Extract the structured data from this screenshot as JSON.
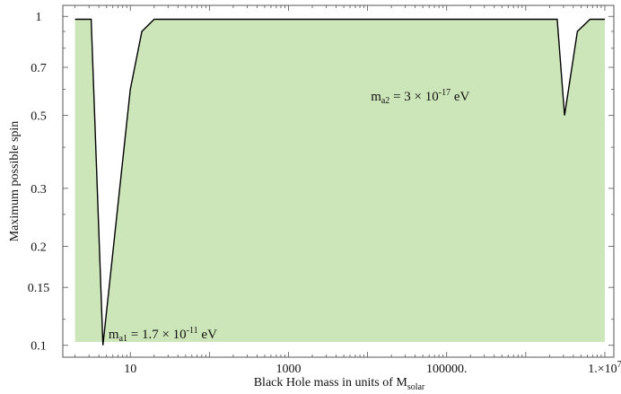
{
  "chart_data": {
    "type": "area",
    "title": "",
    "xlabel": "Black Hole mass in units of M",
    "xlabel_sub": "solar",
    "ylabel": "Maximum  possible  spin",
    "x_scale": "log",
    "y_scale": "log",
    "xlim": [
      1.4,
      13000000
    ],
    "ylim": [
      0.092,
      1.08
    ],
    "x_ticks": [
      {
        "value": 10,
        "label": "10"
      },
      {
        "value": 1000,
        "label": "1000"
      },
      {
        "value": 100000,
        "label": "100000."
      },
      {
        "value": 10000000,
        "label": "1.×10",
        "sup": "7"
      }
    ],
    "y_ticks": [
      {
        "value": 1,
        "label": "1"
      },
      {
        "value": 0.7,
        "label": "0.7"
      },
      {
        "value": 0.5,
        "label": "0.5"
      },
      {
        "value": 0.3,
        "label": "0.3"
      },
      {
        "value": 0.2,
        "label": "0.2"
      },
      {
        "value": 0.15,
        "label": "0.15"
      },
      {
        "value": 0.1,
        "label": "0.1"
      }
    ],
    "series": [
      {
        "x": [
          2,
          3.2,
          4.5,
          10,
          14,
          20,
          2500000,
          3100000,
          4500000,
          6500000,
          10000000
        ],
        "y": [
          0.98,
          0.98,
          0.1,
          0.6,
          0.9,
          0.98,
          0.98,
          0.5,
          0.9,
          0.98,
          0.98
        ]
      }
    ],
    "fill_color": "#cde6b9",
    "line_color": "#000000",
    "annotations": [
      {
        "id": "ma1",
        "base": "m",
        "sub": "a1",
        "text": " = 1.7 × 10",
        "sup": "-11",
        "unit": " eV",
        "x": 5.3,
        "y": 0.105
      },
      {
        "id": "ma2",
        "base": "m",
        "sub": "a2",
        "text": " = 3 × 10",
        "sup": "-17",
        "unit": " eV",
        "x": 11000,
        "y": 0.555
      }
    ]
  }
}
